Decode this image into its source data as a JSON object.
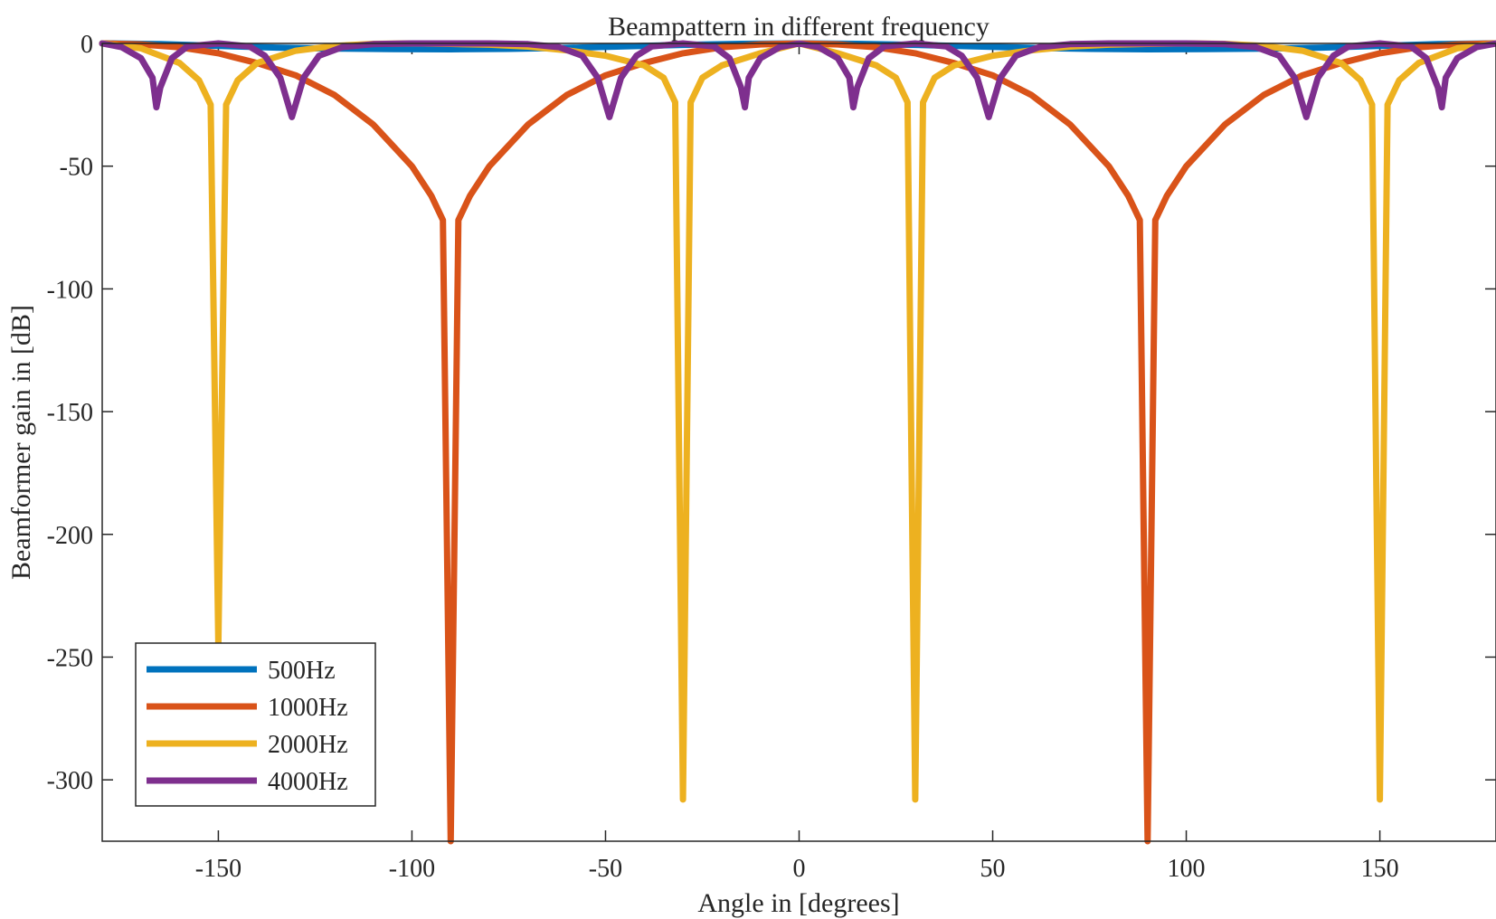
{
  "chart_data": {
    "type": "line",
    "title": "Beampattern in different frequency",
    "xlabel": "Angle in [degrees]",
    "ylabel": "Beamformer gain in [dB]",
    "xlim": [
      -180,
      180
    ],
    "ylim": [
      -325,
      0
    ],
    "xticks": [
      -150,
      -100,
      -50,
      0,
      50,
      100,
      150
    ],
    "yticks": [
      0,
      -50,
      -100,
      -150,
      -200,
      -250,
      -300
    ],
    "xtick_labels": [
      "-150",
      "-100",
      "-50",
      "0",
      "50",
      "100",
      "150"
    ],
    "ytick_labels": [
      "0",
      "-50",
      "-100",
      "-150",
      "-200",
      "-250",
      "-300"
    ],
    "grid": false,
    "legend_position": "bottom-left",
    "series": [
      {
        "name": "500Hz",
        "color": "#0072BD",
        "points": [
          [
            -180,
            0
          ],
          [
            -165,
            -0.3
          ],
          [
            -150,
            -1.0
          ],
          [
            -135,
            -1.7
          ],
          [
            -120,
            -2.1
          ],
          [
            -105,
            -2.3
          ],
          [
            -90,
            -2.4
          ],
          [
            -75,
            -2.2
          ],
          [
            -60,
            -1.8
          ],
          [
            -45,
            -1.2
          ],
          [
            -30,
            -0.6
          ],
          [
            -15,
            -0.2
          ],
          [
            0,
            0
          ],
          [
            15,
            -0.2
          ],
          [
            30,
            -0.6
          ],
          [
            45,
            -1.2
          ],
          [
            60,
            -1.8
          ],
          [
            75,
            -2.2
          ],
          [
            90,
            -2.4
          ],
          [
            105,
            -2.3
          ],
          [
            120,
            -2.1
          ],
          [
            135,
            -1.7
          ],
          [
            150,
            -1.0
          ],
          [
            165,
            -0.3
          ],
          [
            180,
            0
          ]
        ]
      },
      {
        "name": "1000Hz",
        "color": "#D95319",
        "points": [
          [
            -180,
            0
          ],
          [
            -170,
            -0.4
          ],
          [
            -160,
            -1.6
          ],
          [
            -150,
            -4
          ],
          [
            -140,
            -8
          ],
          [
            -130,
            -13
          ],
          [
            -120,
            -21
          ],
          [
            -110,
            -33
          ],
          [
            -100,
            -50
          ],
          [
            -95,
            -62
          ],
          [
            -92,
            -72
          ],
          [
            -90,
            -325
          ],
          [
            -88,
            -72
          ],
          [
            -85,
            -62
          ],
          [
            -80,
            -50
          ],
          [
            -70,
            -33
          ],
          [
            -60,
            -21
          ],
          [
            -50,
            -13
          ],
          [
            -40,
            -8
          ],
          [
            -30,
            -4
          ],
          [
            -20,
            -1.6
          ],
          [
            -10,
            -0.4
          ],
          [
            0,
            0
          ],
          [
            10,
            -0.4
          ],
          [
            20,
            -1.6
          ],
          [
            30,
            -4
          ],
          [
            40,
            -8
          ],
          [
            50,
            -13
          ],
          [
            60,
            -21
          ],
          [
            70,
            -33
          ],
          [
            80,
            -50
          ],
          [
            85,
            -62
          ],
          [
            88,
            -72
          ],
          [
            90,
            -325
          ],
          [
            92,
            -72
          ],
          [
            95,
            -62
          ],
          [
            100,
            -50
          ],
          [
            110,
            -33
          ],
          [
            120,
            -21
          ],
          [
            130,
            -13
          ],
          [
            140,
            -8
          ],
          [
            150,
            -4
          ],
          [
            160,
            -1.6
          ],
          [
            170,
            -0.4
          ],
          [
            180,
            0
          ]
        ]
      },
      {
        "name": "2000Hz",
        "color": "#EDB120",
        "points": [
          [
            -180,
            0
          ],
          [
            -170,
            -2
          ],
          [
            -160,
            -8
          ],
          [
            -155,
            -15
          ],
          [
            -152,
            -25
          ],
          [
            -150,
            -245
          ],
          [
            -148,
            -25
          ],
          [
            -145,
            -15
          ],
          [
            -140,
            -8
          ],
          [
            -130,
            -3
          ],
          [
            -120,
            -1
          ],
          [
            -110,
            -0.2
          ],
          [
            -100,
            0
          ],
          [
            -90,
            -0.2
          ],
          [
            -80,
            -0.5
          ],
          [
            -70,
            -1.3
          ],
          [
            -60,
            -2.8
          ],
          [
            -50,
            -5
          ],
          [
            -40,
            -9
          ],
          [
            -35,
            -14
          ],
          [
            -32,
            -24
          ],
          [
            -30,
            -308
          ],
          [
            -28,
            -24
          ],
          [
            -25,
            -14
          ],
          [
            -20,
            -9
          ],
          [
            -10,
            -4
          ],
          [
            0,
            0
          ],
          [
            10,
            -4
          ],
          [
            20,
            -9
          ],
          [
            25,
            -14
          ],
          [
            28,
            -24
          ],
          [
            30,
            -308
          ],
          [
            32,
            -24
          ],
          [
            35,
            -14
          ],
          [
            40,
            -9
          ],
          [
            50,
            -5
          ],
          [
            60,
            -2.8
          ],
          [
            70,
            -1.3
          ],
          [
            80,
            -0.5
          ],
          [
            90,
            -0.2
          ],
          [
            100,
            0
          ],
          [
            110,
            -0.2
          ],
          [
            120,
            -1
          ],
          [
            130,
            -3
          ],
          [
            140,
            -8
          ],
          [
            145,
            -15
          ],
          [
            148,
            -25
          ],
          [
            150,
            -308
          ],
          [
            152,
            -25
          ],
          [
            155,
            -15
          ],
          [
            160,
            -8
          ],
          [
            170,
            -2
          ],
          [
            180,
            0
          ]
        ]
      },
      {
        "name": "4000Hz",
        "color": "#7E2F8E",
        "points": [
          [
            -180,
            0
          ],
          [
            -175,
            -1.5
          ],
          [
            -170,
            -6
          ],
          [
            -167,
            -14
          ],
          [
            -166,
            -26
          ],
          [
            -165,
            -18
          ],
          [
            -162,
            -6
          ],
          [
            -158,
            -1.2
          ],
          [
            -150,
            0
          ],
          [
            -142,
            -1.2
          ],
          [
            -138,
            -5
          ],
          [
            -134,
            -14
          ],
          [
            -131,
            -30
          ],
          [
            -128,
            -14
          ],
          [
            -124,
            -5
          ],
          [
            -118,
            -1.5
          ],
          [
            -110,
            -0.3
          ],
          [
            -100,
            0
          ],
          [
            -90,
            0
          ],
          [
            -80,
            0
          ],
          [
            -70,
            -0.3
          ],
          [
            -62,
            -1.5
          ],
          [
            -56,
            -5
          ],
          [
            -52,
            -14
          ],
          [
            -49,
            -30
          ],
          [
            -46,
            -14
          ],
          [
            -42,
            -5
          ],
          [
            -38,
            -1.2
          ],
          [
            -30,
            0
          ],
          [
            -22,
            -1.2
          ],
          [
            -18,
            -6
          ],
          [
            -15,
            -18
          ],
          [
            -14,
            -26
          ],
          [
            -13,
            -14
          ],
          [
            -10,
            -6
          ],
          [
            -5,
            -1.5
          ],
          [
            0,
            0
          ],
          [
            5,
            -1.5
          ],
          [
            10,
            -6
          ],
          [
            13,
            -14
          ],
          [
            14,
            -26
          ],
          [
            15,
            -18
          ],
          [
            18,
            -6
          ],
          [
            22,
            -1.2
          ],
          [
            30,
            0
          ],
          [
            38,
            -1.2
          ],
          [
            42,
            -5
          ],
          [
            46,
            -14
          ],
          [
            49,
            -30
          ],
          [
            52,
            -14
          ],
          [
            56,
            -5
          ],
          [
            62,
            -1.5
          ],
          [
            70,
            -0.3
          ],
          [
            80,
            0
          ],
          [
            90,
            0
          ],
          [
            100,
            0
          ],
          [
            110,
            -0.3
          ],
          [
            118,
            -1.5
          ],
          [
            124,
            -5
          ],
          [
            128,
            -14
          ],
          [
            131,
            -30
          ],
          [
            134,
            -14
          ],
          [
            138,
            -5
          ],
          [
            142,
            -1.2
          ],
          [
            150,
            0
          ],
          [
            158,
            -1.2
          ],
          [
            162,
            -6
          ],
          [
            165,
            -18
          ],
          [
            166,
            -26
          ],
          [
            167,
            -14
          ],
          [
            170,
            -6
          ],
          [
            175,
            -1.5
          ],
          [
            180,
            0
          ]
        ]
      }
    ]
  }
}
